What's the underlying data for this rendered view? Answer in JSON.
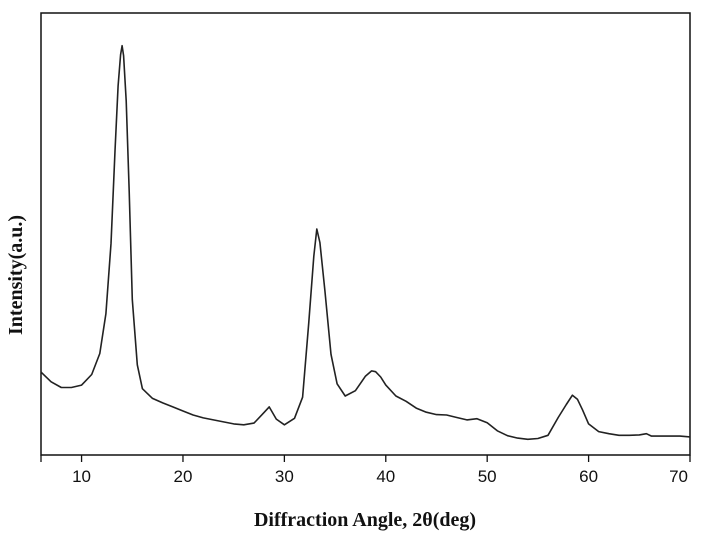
{
  "chart_data": {
    "type": "line",
    "title": "",
    "xlabel": "Diffraction Angle, 2θ(deg)",
    "ylabel": "Intensity(a.u.)",
    "xlim": [
      6,
      70
    ],
    "ylim": [
      0,
      100
    ],
    "x_ticks": [
      10,
      20,
      30,
      40,
      50,
      60,
      70
    ],
    "x_tick_labels": [
      "10",
      "20",
      "30",
      "40",
      "50",
      "60",
      "70"
    ],
    "y_ticks_shown": false,
    "grid": false,
    "legend": "none",
    "line_color": "#222222",
    "series": [
      {
        "x": [
          6.0,
          7.0,
          8.0,
          9.0,
          10.0,
          11.0,
          11.8,
          12.4,
          12.9,
          13.3,
          13.6,
          13.85,
          14.0,
          14.15,
          14.4,
          14.7,
          15.0,
          15.5,
          16.0,
          17.0,
          18.0,
          19.0,
          20.0,
          21.0,
          22.0,
          23.0,
          24.0,
          25.0,
          26.0,
          27.0,
          27.8,
          28.5,
          29.2,
          30.0,
          31.0,
          31.8,
          32.4,
          32.9,
          33.2,
          33.5,
          34.0,
          34.6,
          35.2,
          36.0,
          37.0,
          38.0,
          38.6,
          39.0,
          39.5,
          40.0,
          41.0,
          42.0,
          43.0,
          44.0,
          45.0,
          46.0,
          47.0,
          48.0,
          49.0,
          50.0,
          51.0,
          52.0,
          53.0,
          54.0,
          55.0,
          56.0,
          57.0,
          57.8,
          58.4,
          58.9,
          59.4,
          60.0,
          61.0,
          62.0,
          63.0,
          64.0,
          65.0,
          65.7,
          66.2,
          67.0,
          68.0,
          69.0,
          70.0
        ],
        "y": [
          18.0,
          15.6,
          14.2,
          14.2,
          14.8,
          17.4,
          22.6,
          32.4,
          49.7,
          72.6,
          88.7,
          96.4,
          98.6,
          96.1,
          85.0,
          62.6,
          35.9,
          19.8,
          13.9,
          11.5,
          10.4,
          9.4,
          8.4,
          7.4,
          6.7,
          6.2,
          5.7,
          5.2,
          5.0,
          5.4,
          7.5,
          9.4,
          6.4,
          5.0,
          6.6,
          11.8,
          30.0,
          46.6,
          53.3,
          50.0,
          38.1,
          22.4,
          15.1,
          12.1,
          13.4,
          17.0,
          18.3,
          18.1,
          16.8,
          14.8,
          12.1,
          10.8,
          9.1,
          8.1,
          7.5,
          7.4,
          6.8,
          6.2,
          6.5,
          5.5,
          3.5,
          2.3,
          1.7,
          1.4,
          1.6,
          2.4,
          6.8,
          10.0,
          12.3,
          11.3,
          8.7,
          5.2,
          3.3,
          2.8,
          2.4,
          2.4,
          2.5,
          2.8,
          2.2,
          2.2,
          2.2,
          2.2,
          2.0
        ]
      }
    ]
  }
}
